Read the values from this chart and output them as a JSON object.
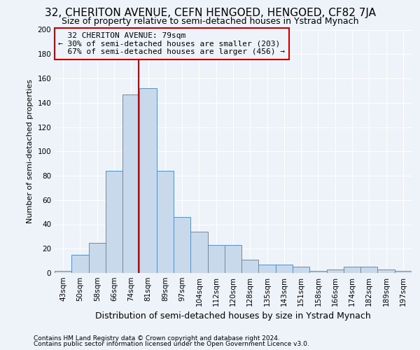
{
  "title": "32, CHERITON AVENUE, CEFN HENGOED, HENGOED, CF82 7JA",
  "subtitle": "Size of property relative to semi-detached houses in Ystrad Mynach",
  "xlabel": "Distribution of semi-detached houses by size in Ystrad Mynach",
  "ylabel": "Number of semi-detached properties",
  "footer1": "Contains HM Land Registry data © Crown copyright and database right 2024.",
  "footer2": "Contains public sector information licensed under the Open Government Licence v3.0.",
  "categories": [
    "43sqm",
    "50sqm",
    "58sqm",
    "66sqm",
    "74sqm",
    "81sqm",
    "89sqm",
    "97sqm",
    "104sqm",
    "112sqm",
    "120sqm",
    "128sqm",
    "135sqm",
    "143sqm",
    "151sqm",
    "158sqm",
    "166sqm",
    "174sqm",
    "182sqm",
    "189sqm",
    "197sqm"
  ],
  "values": [
    2,
    15,
    25,
    84,
    147,
    152,
    84,
    46,
    34,
    23,
    23,
    11,
    7,
    7,
    5,
    2,
    3,
    5,
    5,
    3,
    2
  ],
  "bar_color": "#c9d9ec",
  "bar_edge_color": "#5a8fc0",
  "property_label": "32 CHERITON AVENUE: 79sqm",
  "pct_smaller": 30,
  "pct_smaller_n": 203,
  "pct_larger": 67,
  "pct_larger_n": 456,
  "vline_color": "#cc0000",
  "vline_x_index": 4.43,
  "annotation_box_color": "#cc0000",
  "ylim": [
    0,
    200
  ],
  "yticks": [
    0,
    20,
    40,
    60,
    80,
    100,
    120,
    140,
    160,
    180,
    200
  ],
  "bg_color": "#eef2f9",
  "grid_color": "#ffffff",
  "title_fontsize": 11,
  "subtitle_fontsize": 9,
  "ylabel_fontsize": 8,
  "xlabel_fontsize": 9,
  "annotation_fontsize": 8,
  "tick_fontsize": 7.5,
  "footer_fontsize": 6.5
}
